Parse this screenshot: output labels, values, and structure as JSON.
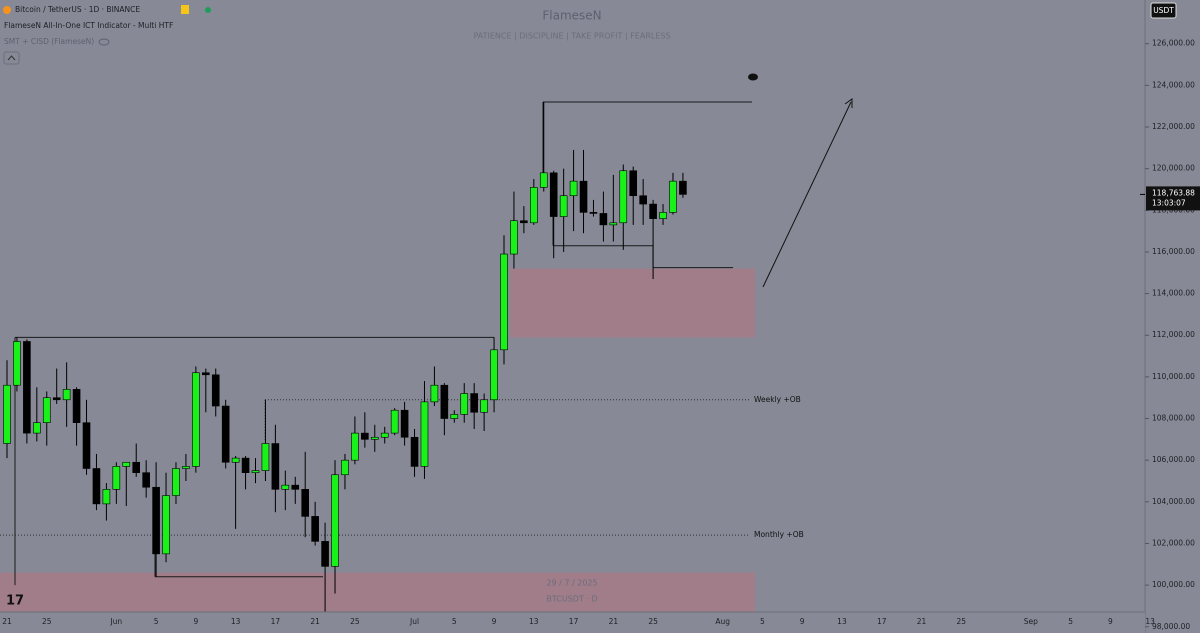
{
  "chart_data": {
    "type": "candlestick",
    "title": "Bitcoin / TetherUS · 1D · BINANCE",
    "indicators": [
      "FlameseN All-In-One ICT Indicator - Multi HTF",
      "SMT + CISD (FlameseN)"
    ],
    "watermark": {
      "title": "FlameseN",
      "subtitle": "PATIENCE | DISCIPLINE | TAKE PROFIT | FEARLESS",
      "date": "29 / 7 / 2025",
      "symbol": "BTCUSDT · D"
    },
    "currency": "USDT",
    "last_price": {
      "value": 118763.88,
      "label": "118,763.88"
    },
    "countdown": "13:03:07",
    "up_color": "#19f219",
    "down_color": "#000000",
    "categories": [
      "21",
      null,
      null,
      null,
      "25",
      null,
      null,
      null,
      null,
      null,
      null,
      "Jun",
      null,
      null,
      null,
      "5",
      null,
      null,
      null,
      "9",
      null,
      null,
      null,
      "13",
      null,
      null,
      null,
      "17",
      null,
      null,
      null,
      "21",
      null,
      null,
      null,
      "25",
      null,
      null,
      null,
      null,
      null,
      "Jul",
      null,
      null,
      null,
      "5",
      null,
      null,
      null,
      "9",
      null,
      null,
      null,
      "13",
      null,
      null,
      null,
      "17",
      null,
      null,
      null,
      "21",
      null,
      null,
      null,
      "25",
      null,
      null,
      null,
      null,
      null,
      null,
      "Aug",
      null,
      null,
      null,
      "5",
      null,
      null,
      null,
      "9",
      null,
      null,
      null,
      "13",
      null,
      null,
      null,
      "17",
      null,
      null,
      null,
      "21",
      null,
      null,
      null,
      "25",
      null,
      null,
      null,
      null,
      null,
      null,
      "Sep",
      null,
      null,
      null,
      "5",
      null,
      null,
      null,
      "9",
      null,
      null,
      null,
      "13"
    ],
    "open": [
      106800,
      109600,
      111700,
      107300,
      107800,
      109000,
      108900,
      109400,
      107800,
      105600,
      103900,
      104600,
      105700,
      105900,
      105400,
      104700,
      101500,
      104300,
      105600,
      105700,
      110200,
      110100,
      108600,
      105900,
      106100,
      105400,
      105500,
      106800,
      104600,
      104800,
      104600,
      103300,
      102100,
      100900,
      105300,
      106000,
      107300,
      107000,
      107100,
      107300,
      108400,
      107100,
      105700,
      108800,
      109600,
      108000,
      108200,
      109200,
      108300,
      108900,
      111300,
      115900,
      117500,
      117400,
      119100,
      119800,
      117700,
      118700,
      119400,
      117900,
      117850,
      117300,
      117400,
      119900,
      118700,
      118300,
      117600,
      117900,
      119400,
      null,
      null,
      null,
      null,
      null,
      null,
      null,
      null,
      null,
      null,
      null,
      null,
      null,
      null,
      null,
      null,
      null,
      null,
      null,
      null,
      null,
      null,
      null,
      null,
      null,
      null,
      null,
      null,
      null,
      null,
      null,
      null,
      null,
      null,
      null,
      null,
      null,
      null,
      null,
      null,
      null,
      null,
      null,
      null,
      null,
      null,
      null
    ],
    "high": [
      110800,
      111900,
      111800,
      109500,
      109300,
      110400,
      110700,
      109500,
      108900,
      106300,
      104900,
      105900,
      105900,
      106800,
      106000,
      105900,
      105400,
      105900,
      106300,
      110500,
      110400,
      110400,
      108900,
      106200,
      106200,
      106100,
      108900,
      107700,
      105500,
      105200,
      106400,
      104000,
      103000,
      106000,
      106300,
      108100,
      108300,
      107700,
      107600,
      108500,
      108800,
      107500,
      109800,
      110500,
      109700,
      108400,
      109700,
      109700,
      109200,
      111900,
      116800,
      118900,
      118200,
      119500,
      123200,
      119900,
      120000,
      120900,
      120900,
      118500,
      118900,
      119700,
      120200,
      120100,
      119500,
      118500,
      118300,
      119800,
      119800,
      null,
      null,
      null,
      null,
      null,
      null,
      null,
      null,
      null,
      null,
      null,
      null,
      null,
      null,
      null,
      null,
      null,
      null,
      null,
      null,
      null,
      null,
      null,
      null,
      null,
      null,
      null,
      null,
      null,
      null,
      null,
      null,
      null,
      null,
      null,
      null,
      null,
      null,
      null,
      null,
      null,
      null,
      null,
      null,
      null,
      null,
      null
    ],
    "low": [
      106100,
      109300,
      106800,
      106900,
      106700,
      108700,
      107600,
      106700,
      105300,
      103600,
      103100,
      103900,
      103800,
      105200,
      104200,
      100400,
      101100,
      103900,
      105000,
      105400,
      108300,
      108100,
      105600,
      102700,
      104600,
      104900,
      105000,
      103500,
      103600,
      103900,
      102300,
      101900,
      98200,
      99600,
      104600,
      105800,
      106600,
      106400,
      106800,
      107200,
      106700,
      105200,
      105100,
      108600,
      107200,
      107800,
      107800,
      107500,
      107400,
      108300,
      110600,
      115200,
      116900,
      117300,
      118900,
      115700,
      116000,
      117000,
      116900,
      117700,
      116500,
      116500,
      116100,
      117300,
      117300,
      114700,
      117300,
      117800,
      118600,
      null,
      null,
      null,
      null,
      null,
      null,
      null,
      null,
      null,
      null,
      null,
      null,
      null,
      null,
      null,
      null,
      null,
      null,
      null,
      null,
      null,
      null,
      null,
      null,
      null,
      null,
      null,
      null,
      null,
      null,
      null,
      null,
      null,
      null,
      null,
      null,
      null,
      null,
      null,
      null,
      null,
      null,
      null,
      null,
      null,
      null,
      null
    ],
    "close": [
      109600,
      111700,
      107300,
      107800,
      109000,
      108900,
      109400,
      107800,
      105600,
      103900,
      104600,
      105700,
      105900,
      105400,
      104700,
      101500,
      104300,
      105600,
      105700,
      110200,
      110100,
      108600,
      105900,
      106100,
      105400,
      105500,
      106800,
      104600,
      104800,
      104600,
      103300,
      102100,
      100900,
      105300,
      106000,
      107300,
      107000,
      107100,
      107300,
      108400,
      107100,
      105700,
      108800,
      109600,
      108000,
      108200,
      109200,
      108300,
      108900,
      111300,
      115900,
      117500,
      117400,
      119100,
      119800,
      117700,
      118700,
      119400,
      117900,
      117850,
      117300,
      117400,
      119900,
      118700,
      118300,
      117600,
      117900,
      119400,
      118763.88,
      null,
      null,
      null,
      null,
      null,
      null,
      null,
      null,
      null,
      null,
      null,
      null,
      null,
      null,
      null,
      null,
      null,
      null,
      null,
      null,
      null,
      null,
      null,
      null,
      null,
      null,
      null,
      null,
      null,
      null,
      null,
      null,
      null,
      null,
      null,
      null,
      null,
      null,
      null,
      null,
      null,
      null,
      null,
      null,
      null,
      null,
      null
    ],
    "ylim": [
      97700,
      128100
    ],
    "yticks": [
      {
        "value": 98000,
        "label": "98,000.00"
      },
      {
        "value": 100000,
        "label": "100,000.00"
      },
      {
        "value": 102000,
        "label": "102,000.00"
      },
      {
        "value": 104000,
        "label": "104,000.00"
      },
      {
        "value": 106000,
        "label": "106,000.00"
      },
      {
        "value": 108000,
        "label": "108,000.00"
      },
      {
        "value": 110000,
        "label": "110,000.00"
      },
      {
        "value": 112000,
        "label": "112,000.00"
      },
      {
        "value": 114000,
        "label": "114,000.00"
      },
      {
        "value": 116000,
        "label": "116,000.00"
      },
      {
        "value": 118000,
        "label": "118,000.00"
      },
      {
        "value": 120000,
        "label": "120,000.00"
      },
      {
        "value": 122000,
        "label": "122,000.00"
      },
      {
        "value": 124000,
        "label": "124,000.00"
      },
      {
        "value": 126000,
        "label": "126,000.00"
      }
    ],
    "zones": [
      {
        "top": 115200,
        "bottom": 111900
      },
      {
        "top": 100600,
        "bottom": 97800
      }
    ],
    "levels": [
      {
        "label": "Weekly +OB",
        "value": 108900
      },
      {
        "label": "Monthly +OB",
        "value": 102400
      }
    ],
    "structure_levels": [
      111900,
      100400,
      123200,
      116300,
      115250
    ]
  }
}
